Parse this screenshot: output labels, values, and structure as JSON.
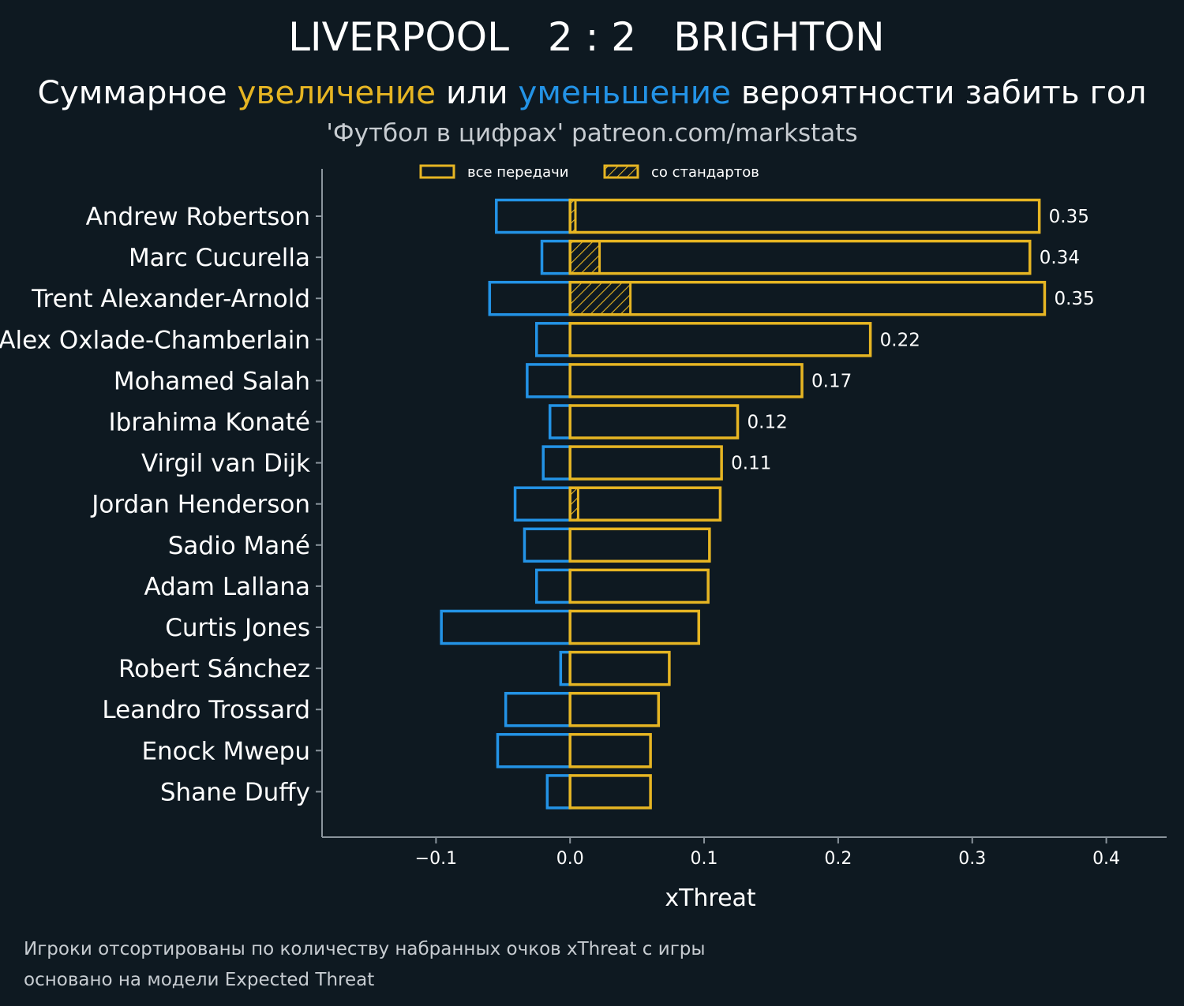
{
  "header": {
    "home_team": "LIVERPOOL",
    "score": "2 : 2",
    "away_team": "BRIGHTON",
    "subtitle_start": "Суммарное ",
    "subtitle_increase": "увеличение",
    "subtitle_mid": " или ",
    "subtitle_decrease": "уменьшение",
    "subtitle_end": " вероятности забить гол",
    "source": "'Футбол в цифрах' patreon.com/markstats"
  },
  "footer": {
    "line1": "Игроки отсортированы по количеству набранных очков xThreat с игры",
    "line2": "основано на модели Expected Threat"
  },
  "colors": {
    "background": "#0e1921",
    "positive": "#e6b523",
    "negative": "#2393e6",
    "axis": "#8a949c"
  },
  "chart_data": {
    "type": "bar",
    "orientation": "horizontal",
    "xlabel": "xThreat",
    "xlim": [
      -0.185,
      0.445
    ],
    "xticks": [
      -0.1,
      0.0,
      0.1,
      0.2,
      0.3,
      0.4
    ],
    "xtick_labels": [
      "−0.1",
      "0.0",
      "0.1",
      "0.2",
      "0.3",
      "0.4"
    ],
    "legend": {
      "placement": "top",
      "entries": [
        {
          "label": "все передачи",
          "style": "outline"
        },
        {
          "label": "со стандартов",
          "style": "hatched"
        }
      ]
    },
    "categories": [
      "Andrew Robertson",
      "Marc Cucurella",
      "Trent Alexander-Arnold",
      "Alex Oxlade-Chamberlain",
      "Mohamed Salah",
      "Ibrahima Konaté",
      "Virgil van Dijk",
      "Jordan Henderson",
      "Sadio Mané",
      "Adam Lallana",
      "Curtis Jones",
      "Robert Sánchez",
      "Leandro Trossard",
      "Enock Mwepu",
      "Shane Duffy"
    ],
    "series": [
      {
        "name": "все передачи",
        "values": [
          0.35,
          0.343,
          0.354,
          0.224,
          0.173,
          0.125,
          0.113,
          0.112,
          0.104,
          0.103,
          0.096,
          0.074,
          0.066,
          0.06,
          0.06
        ]
      },
      {
        "values": [
          -0.055,
          -0.021,
          -0.06,
          -0.025,
          -0.032,
          -0.015,
          -0.02,
          -0.041,
          -0.034,
          -0.025,
          -0.096,
          -0.007,
          -0.048,
          -0.054,
          -0.017
        ]
      },
      {
        "name": "со стандартов",
        "values": [
          0.004,
          0.022,
          0.045,
          0,
          0,
          0,
          0,
          0.006,
          0,
          0,
          0,
          0,
          0,
          0,
          0
        ]
      }
    ],
    "data_labels": [
      "0.35",
      "0.34",
      "0.35",
      "0.22",
      "0.17",
      "0.12",
      "0.11",
      "",
      "",
      "",
      "",
      "",
      "",
      "",
      ""
    ]
  }
}
